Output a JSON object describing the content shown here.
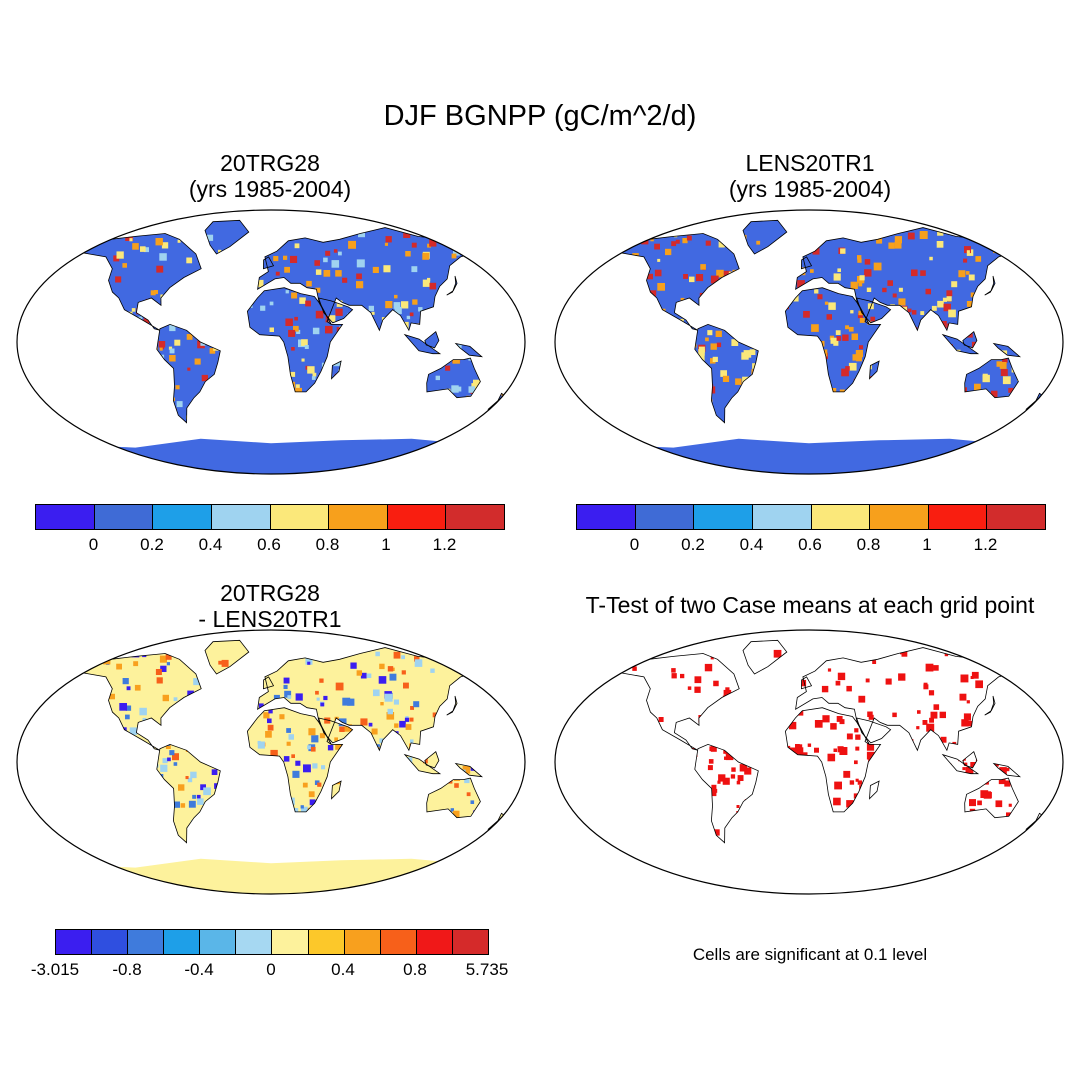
{
  "title": "DJF BGNPP (gC/m^2/d)",
  "panels": [
    {
      "title_line1": "20TRG28",
      "title_line2": "(yrs 1985-2004)"
    },
    {
      "title_line1": "LENS20TR1",
      "title_line2": "(yrs 1985-2004)"
    },
    {
      "title_line1": "20TRG28",
      "title_line2": "- LENS20TR1"
    },
    {
      "title_line1": "T-Test of two Case means at each grid point",
      "title_line2": ""
    }
  ],
  "colorbars": {
    "abs": {
      "colors": [
        "#3b1ef0",
        "#3f6bd6",
        "#1e9fe8",
        "#9fd3f0",
        "#fbe87a",
        "#f7a01c",
        "#f91e10",
        "#d22c2c"
      ],
      "labels": [
        "0",
        "0.2",
        "0.4",
        "0.6",
        "0.8",
        "1",
        "1.2"
      ]
    },
    "diff": {
      "colors": [
        "#3b1ef0",
        "#2f4fe0",
        "#3f7bdc",
        "#1e9fe8",
        "#5ab6e8",
        "#a6d8f2",
        "#fdf29c",
        "#fcc82a",
        "#f8a01e",
        "#f7601a",
        "#f01818",
        "#d52a2a"
      ],
      "labels": [
        "-3.015",
        "-0.8",
        "-0.4",
        "0",
        "0.4",
        "0.8",
        "5.735"
      ]
    }
  },
  "maps": [
    {
      "base": "#4169e1",
      "accents": [
        "#d42a2a",
        "#f7a01c",
        "#fbe87a",
        "#9fd3f0"
      ]
    },
    {
      "base": "#4169e1",
      "accents": [
        "#d42a2a",
        "#f7a01c",
        "#fbe87a"
      ]
    },
    {
      "base": "#fdf29c",
      "accents": [
        "#f8a01e",
        "#9fd3f0",
        "#f7601a",
        "#3b1ef0",
        "#3f7bdc"
      ]
    },
    {
      "base": "#ffffff",
      "accents": [
        "#ee1111"
      ]
    }
  ],
  "note": "Cells are significant at 0.1 level"
}
